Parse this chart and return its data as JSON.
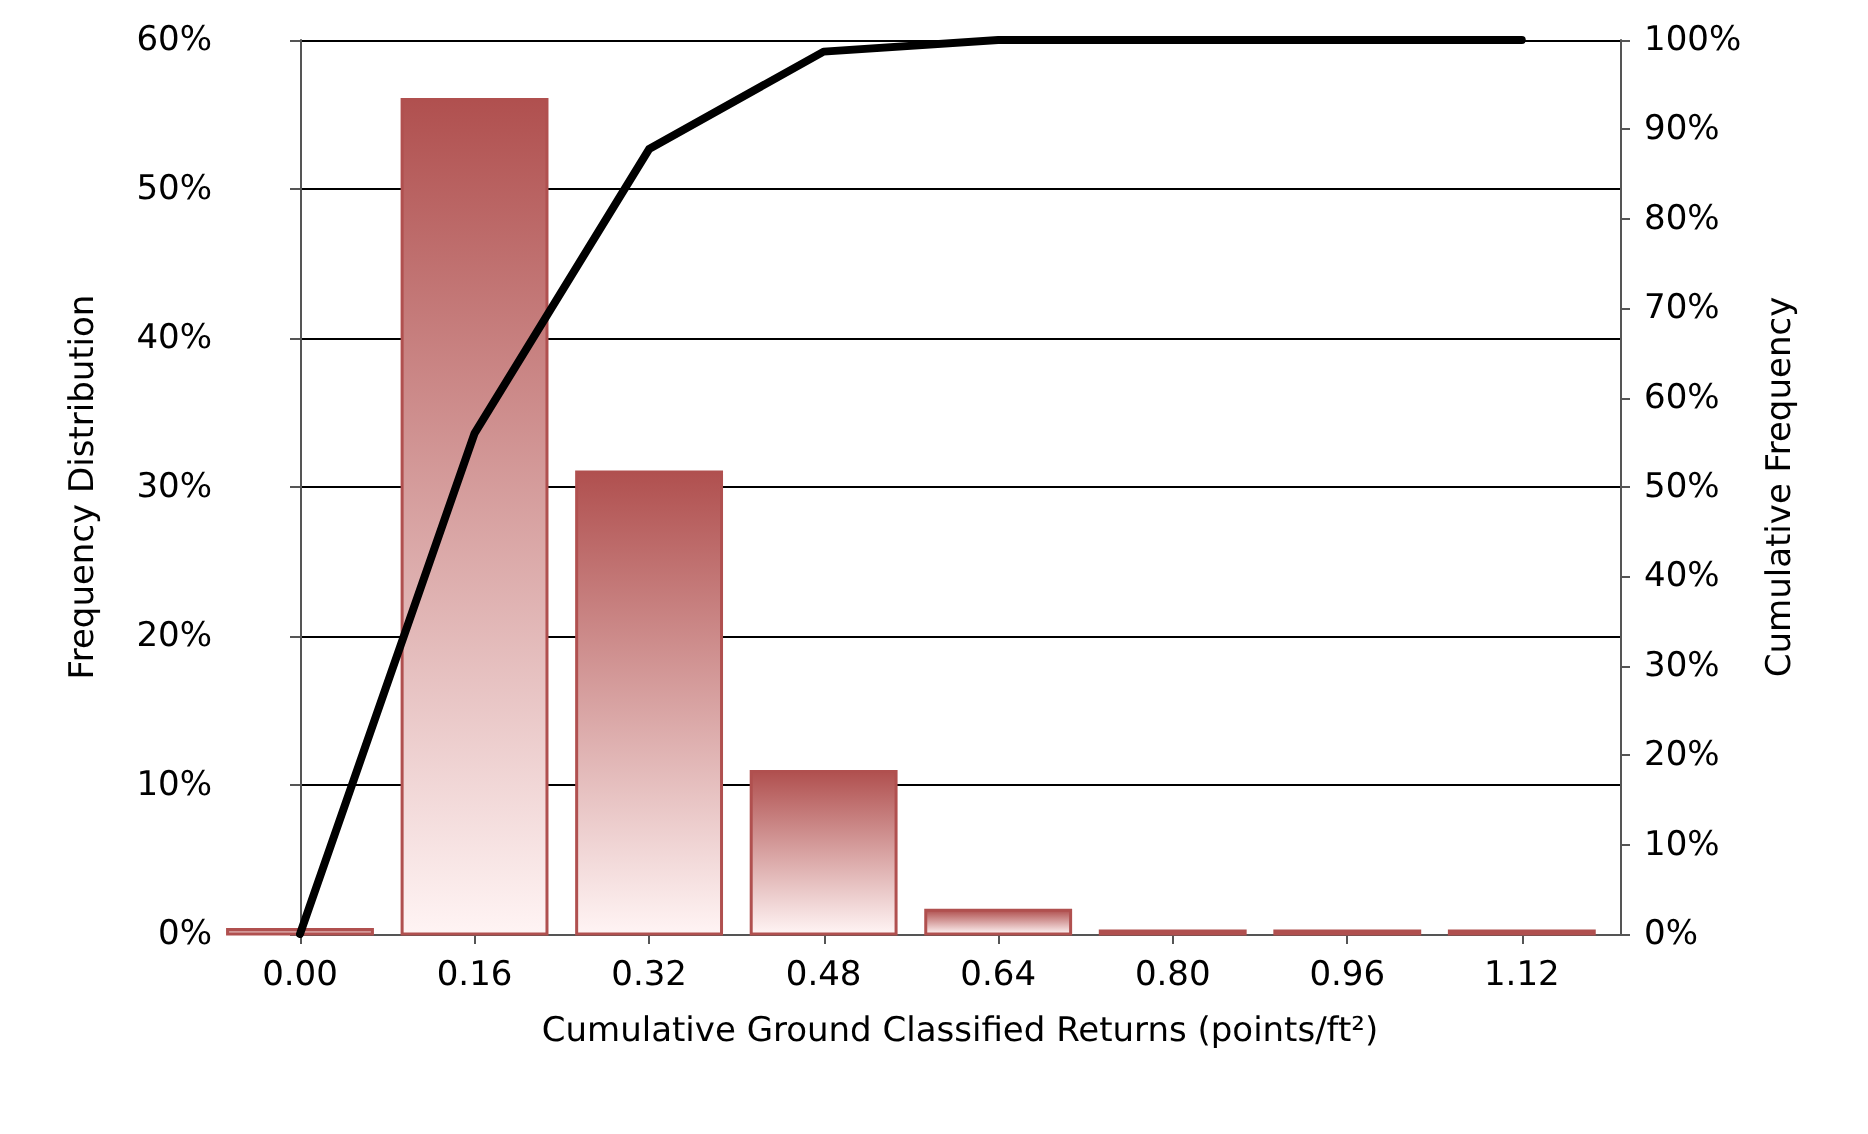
{
  "chart_data": {
    "type": "line",
    "xlabel": "Cumulative Ground Classified Returns (points/ft²)",
    "ylabel": "Frequency Distribution",
    "y2label": "Cumulative Frequency",
    "x": [
      0,
      0.16,
      0.32,
      0.48,
      0.64,
      0.8,
      0.96,
      1.12
    ],
    "series": [
      {
        "type": "bar",
        "color": "#b0504f",
        "values": [
          0.3,
          56,
          31,
          10.9,
          1.6,
          0.2,
          0.2,
          0.2
        ]
      },
      {
        "axis": "y2",
        "color": "#000000",
        "values": [
          0,
          56,
          87.8,
          98.7,
          100,
          100,
          100,
          100
        ]
      }
    ],
    "xlim": [
      0,
      1.21
    ],
    "xticks": [
      {
        "value": 0,
        "label": "0.00"
      },
      {
        "value": 0.16,
        "label": "0.16"
      },
      {
        "value": 0.32,
        "label": "0.32"
      },
      {
        "value": 0.48,
        "label": "0.48"
      },
      {
        "value": 0.64,
        "label": "0.64"
      },
      {
        "value": 0.8,
        "label": "0.80"
      },
      {
        "value": 0.96,
        "label": "0.96"
      },
      {
        "value": 1.12,
        "label": "1.12"
      }
    ],
    "ylim": [
      0,
      60
    ],
    "yticks": [
      {
        "value": 0,
        "label": "0%"
      },
      {
        "value": 10,
        "label": "10%"
      },
      {
        "value": 20,
        "label": "20%"
      },
      {
        "value": 30,
        "label": "30%"
      },
      {
        "value": 40,
        "label": "40%"
      },
      {
        "value": 50,
        "label": "50%"
      },
      {
        "value": 60,
        "label": "60%"
      }
    ],
    "y2lim": [
      0,
      100
    ],
    "y2ticks": [
      {
        "value": 0,
        "label": "0%"
      },
      {
        "value": 10,
        "label": "10%"
      },
      {
        "value": 20,
        "label": "20%"
      },
      {
        "value": 30,
        "label": "30%"
      },
      {
        "value": 40,
        "label": "40%"
      },
      {
        "value": 50,
        "label": "50%"
      },
      {
        "value": 60,
        "label": "60%"
      },
      {
        "value": 70,
        "label": "70%"
      },
      {
        "value": 80,
        "label": "80%"
      },
      {
        "value": 90,
        "label": "90%"
      },
      {
        "value": 100,
        "label": "100%"
      }
    ],
    "grid": "y",
    "marker": "none",
    "line_style": "solid"
  }
}
